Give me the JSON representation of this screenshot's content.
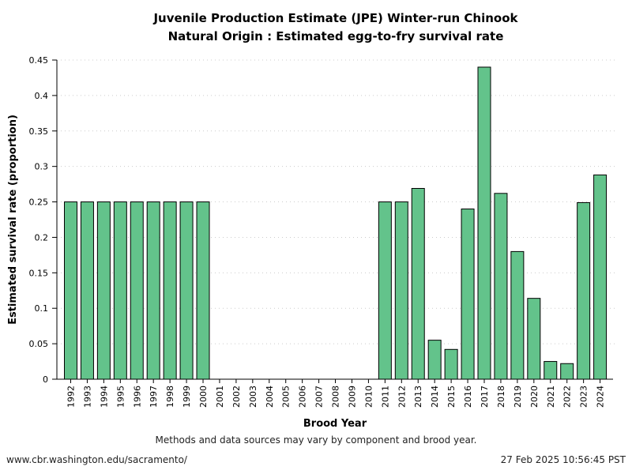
{
  "chart_data": {
    "type": "bar",
    "title": [
      "Juvenile Production Estimate (JPE) Winter-run Chinook",
      "Natural Origin : Estimated egg-to-fry survival rate"
    ],
    "xlabel": "Brood Year",
    "ylabel": "Estimated survival rate (proportion)",
    "ylim": [
      0,
      0.45
    ],
    "yticks": [
      "0",
      "0.05",
      "0.1",
      "0.15",
      "0.2",
      "0.25",
      "0.3",
      "0.35",
      "0.4",
      "0.45"
    ],
    "grid": "horizontal dotted",
    "categories": [
      "1992",
      "1993",
      "1994",
      "1995",
      "1996",
      "1997",
      "1998",
      "1999",
      "2000",
      "2001",
      "2002",
      "2003",
      "2004",
      "2005",
      "2006",
      "2007",
      "2008",
      "2009",
      "2010",
      "2011",
      "2012",
      "2013",
      "2014",
      "2015",
      "2016",
      "2017",
      "2018",
      "2019",
      "2020",
      "2021",
      "2022",
      "2023",
      "2024"
    ],
    "values": [
      0.25,
      0.25,
      0.25,
      0.25,
      0.25,
      0.25,
      0.25,
      0.25,
      0.25,
      null,
      null,
      null,
      null,
      null,
      null,
      null,
      null,
      null,
      null,
      0.25,
      0.25,
      0.269,
      0.055,
      0.042,
      0.24,
      0.44,
      0.262,
      0.18,
      0.114,
      0.025,
      0.022,
      0.249,
      0.288
    ],
    "bar_color": "#63c38b"
  },
  "footer": {
    "note": "Methods and data sources may vary by component and brood year.",
    "url": "www.cbr.washington.edu/sacramento/",
    "timestamp": "27 Feb 2025 10:56:45 PST"
  }
}
